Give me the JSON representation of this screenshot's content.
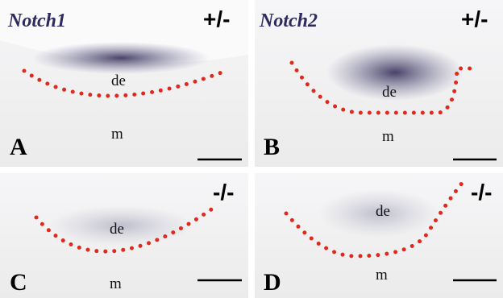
{
  "panels": [
    {
      "gene": "Notch1",
      "genotype": "+/-",
      "regions": [
        "de",
        "m"
      ],
      "letter": "A"
    },
    {
      "gene": "Notch2",
      "genotype": "+/-",
      "regions": [
        "de",
        "m"
      ],
      "letter": "B"
    },
    {
      "genotype": "-/-",
      "regions": [
        "de",
        "m"
      ],
      "letter": "C"
    },
    {
      "genotype": "-/-",
      "regions": [
        "de",
        "m"
      ],
      "letter": "D"
    }
  ]
}
